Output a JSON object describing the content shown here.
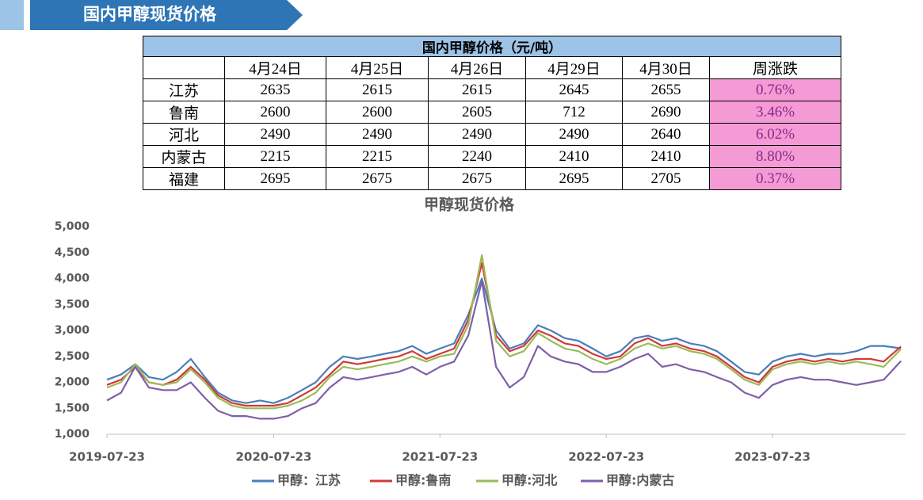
{
  "header": {
    "title": "国内甲醇现货价格"
  },
  "table": {
    "title": "国内甲醇价格（元/吨）",
    "columns": [
      "4月24日",
      "4月25日",
      "4月26日",
      "4月29日",
      "4月30日",
      "周涨跌"
    ],
    "rows": [
      [
        "江苏",
        2635,
        2615,
        2615,
        2645,
        2655,
        "0.76%"
      ],
      [
        "鲁南",
        2600,
        2600,
        2605,
        712,
        2690,
        "3.46%"
      ],
      [
        "河北",
        2490,
        2490,
        2490,
        2490,
        2640,
        "6.02%"
      ],
      [
        "内蒙古",
        2215,
        2215,
        2240,
        2410,
        2410,
        "8.80%"
      ],
      [
        "福建",
        2695,
        2675,
        2675,
        2695,
        2705,
        "0.37%"
      ]
    ]
  },
  "chart_data": {
    "type": "line",
    "title": "甲醇现货价格",
    "x": [
      "2019-07-23",
      "2019-08-23",
      "2019-09-23",
      "2019-10-23",
      "2019-11-23",
      "2019-12-23",
      "2020-01-23",
      "2020-02-23",
      "2020-03-23",
      "2020-04-23",
      "2020-05-23",
      "2020-06-23",
      "2020-07-23",
      "2020-08-23",
      "2020-09-23",
      "2020-10-23",
      "2020-11-23",
      "2020-12-23",
      "2021-01-23",
      "2021-02-23",
      "2021-03-23",
      "2021-04-23",
      "2021-05-23",
      "2021-06-23",
      "2021-07-23",
      "2021-08-23",
      "2021-09-23",
      "2021-10-23",
      "2021-11-23",
      "2021-12-23",
      "2022-01-23",
      "2022-02-23",
      "2022-03-23",
      "2022-04-23",
      "2022-05-23",
      "2022-06-23",
      "2022-07-23",
      "2022-08-23",
      "2022-09-23",
      "2022-10-23",
      "2022-11-23",
      "2022-12-23",
      "2023-01-23",
      "2023-02-23",
      "2023-03-23",
      "2023-04-23",
      "2023-05-23",
      "2023-06-23",
      "2023-07-23",
      "2023-08-23",
      "2023-09-23",
      "2023-10-23",
      "2023-11-23",
      "2023-12-23",
      "2024-01-23",
      "2024-02-23",
      "2024-03-23",
      "2024-04-30"
    ],
    "series": [
      {
        "name": "甲醇：江苏",
        "color": "#4a7ebb",
        "values": [
          2050,
          2150,
          2350,
          2100,
          2050,
          2200,
          2450,
          2100,
          1800,
          1650,
          1600,
          1650,
          1600,
          1700,
          1850,
          2000,
          2300,
          2500,
          2450,
          2500,
          2550,
          2600,
          2700,
          2550,
          2650,
          2750,
          3300,
          4000,
          3000,
          2650,
          2750,
          3100,
          3000,
          2850,
          2800,
          2650,
          2500,
          2600,
          2850,
          2900,
          2800,
          2850,
          2750,
          2700,
          2600,
          2400,
          2200,
          2150,
          2400,
          2500,
          2550,
          2500,
          2550,
          2550,
          2600,
          2700,
          2700,
          2655
        ]
      },
      {
        "name": "甲醇:鲁南",
        "color": "#d03a3a",
        "values": [
          1950,
          2050,
          2300,
          2000,
          1950,
          2050,
          2300,
          2050,
          1750,
          1600,
          1550,
          1550,
          1550,
          1600,
          1750,
          1900,
          2150,
          2400,
          2350,
          2400,
          2450,
          2500,
          2600,
          2450,
          2550,
          2650,
          3200,
          4300,
          2900,
          2600,
          2700,
          3000,
          2900,
          2750,
          2700,
          2550,
          2450,
          2500,
          2750,
          2850,
          2700,
          2750,
          2650,
          2600,
          2500,
          2300,
          2100,
          2000,
          2300,
          2400,
          2450,
          2400,
          2450,
          2400,
          2450,
          2450,
          2400,
          2690
        ]
      },
      {
        "name": "甲醇:河北",
        "color": "#9bbb59",
        "values": [
          1900,
          2000,
          2350,
          2000,
          1950,
          2000,
          2250,
          2000,
          1700,
          1550,
          1500,
          1500,
          1500,
          1550,
          1650,
          1800,
          2100,
          2300,
          2250,
          2300,
          2350,
          2400,
          2500,
          2400,
          2500,
          2550,
          3100,
          4450,
          2800,
          2500,
          2600,
          2950,
          2800,
          2650,
          2600,
          2450,
          2350,
          2450,
          2650,
          2750,
          2650,
          2700,
          2600,
          2550,
          2450,
          2250,
          2050,
          1950,
          2250,
          2350,
          2400,
          2350,
          2400,
          2350,
          2400,
          2350,
          2300,
          2640
        ]
      },
      {
        "name": "甲醇:内蒙古",
        "color": "#7e5fa8",
        "values": [
          1650,
          1800,
          2300,
          1900,
          1850,
          1850,
          2000,
          1700,
          1450,
          1350,
          1350,
          1300,
          1300,
          1350,
          1500,
          1600,
          1900,
          2100,
          2050,
          2100,
          2150,
          2200,
          2300,
          2150,
          2300,
          2400,
          2900,
          3950,
          2300,
          1900,
          2100,
          2700,
          2500,
          2400,
          2350,
          2200,
          2200,
          2300,
          2450,
          2550,
          2300,
          2350,
          2250,
          2200,
          2100,
          2000,
          1800,
          1700,
          1950,
          2050,
          2100,
          2050,
          2050,
          2000,
          1950,
          2000,
          2050,
          2410
        ]
      }
    ],
    "xlim": [
      "2019-07-23",
      "2024-05-10"
    ],
    "xticks": [
      "2019-07-23",
      "2020-07-23",
      "2021-07-23",
      "2022-07-23",
      "2023-07-23"
    ],
    "ylim": [
      1000,
      5000
    ],
    "yticks": [
      {
        "value": 1000,
        "label": "1,000"
      },
      {
        "value": 1500,
        "label": "1,500"
      },
      {
        "value": 2000,
        "label": "2,000"
      },
      {
        "value": 2500,
        "label": "2,500"
      },
      {
        "value": 3000,
        "label": "3,000"
      },
      {
        "value": 3500,
        "label": "3,500"
      },
      {
        "value": 4000,
        "label": "4,000"
      },
      {
        "value": 4500,
        "label": "4,500"
      },
      {
        "value": 5000,
        "label": "5,000"
      }
    ],
    "grid": false
  }
}
